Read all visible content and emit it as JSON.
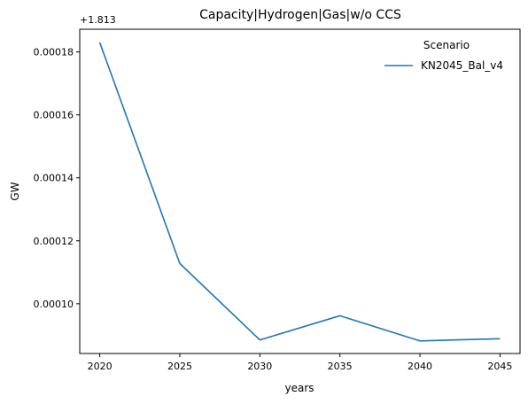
{
  "chart_data": {
    "type": "line",
    "title": "Capacity|Hydrogen|Gas|w/o CCS",
    "xlabel": "years",
    "ylabel": "GW",
    "y_offset_label": "+1.813",
    "y_offset": 1.813,
    "x": [
      2020,
      2025,
      2030,
      2035,
      2040,
      2045
    ],
    "series": [
      {
        "name": "KN2045_Bal_v4",
        "color": "#1f77b4",
        "values": [
          0.000183,
          0.0001128,
          8.85e-05,
          9.62e-05,
          8.82e-05,
          8.89e-05
        ]
      }
    ],
    "xlim": [
      2018.75,
      2046.25
    ],
    "ylim": [
      8.42e-05,
      0.0001872
    ],
    "xticks": [
      "2020",
      "2025",
      "2030",
      "2035",
      "2040",
      "2045"
    ],
    "yticks": [
      "0.00010",
      "0.00012",
      "0.00014",
      "0.00016",
      "0.00018"
    ],
    "ytick_values": [
      0.0001,
      0.00012,
      0.00014,
      0.00016,
      0.00018
    ],
    "legend": {
      "title": "Scenario",
      "placement": "top-right"
    },
    "grid": false
  }
}
